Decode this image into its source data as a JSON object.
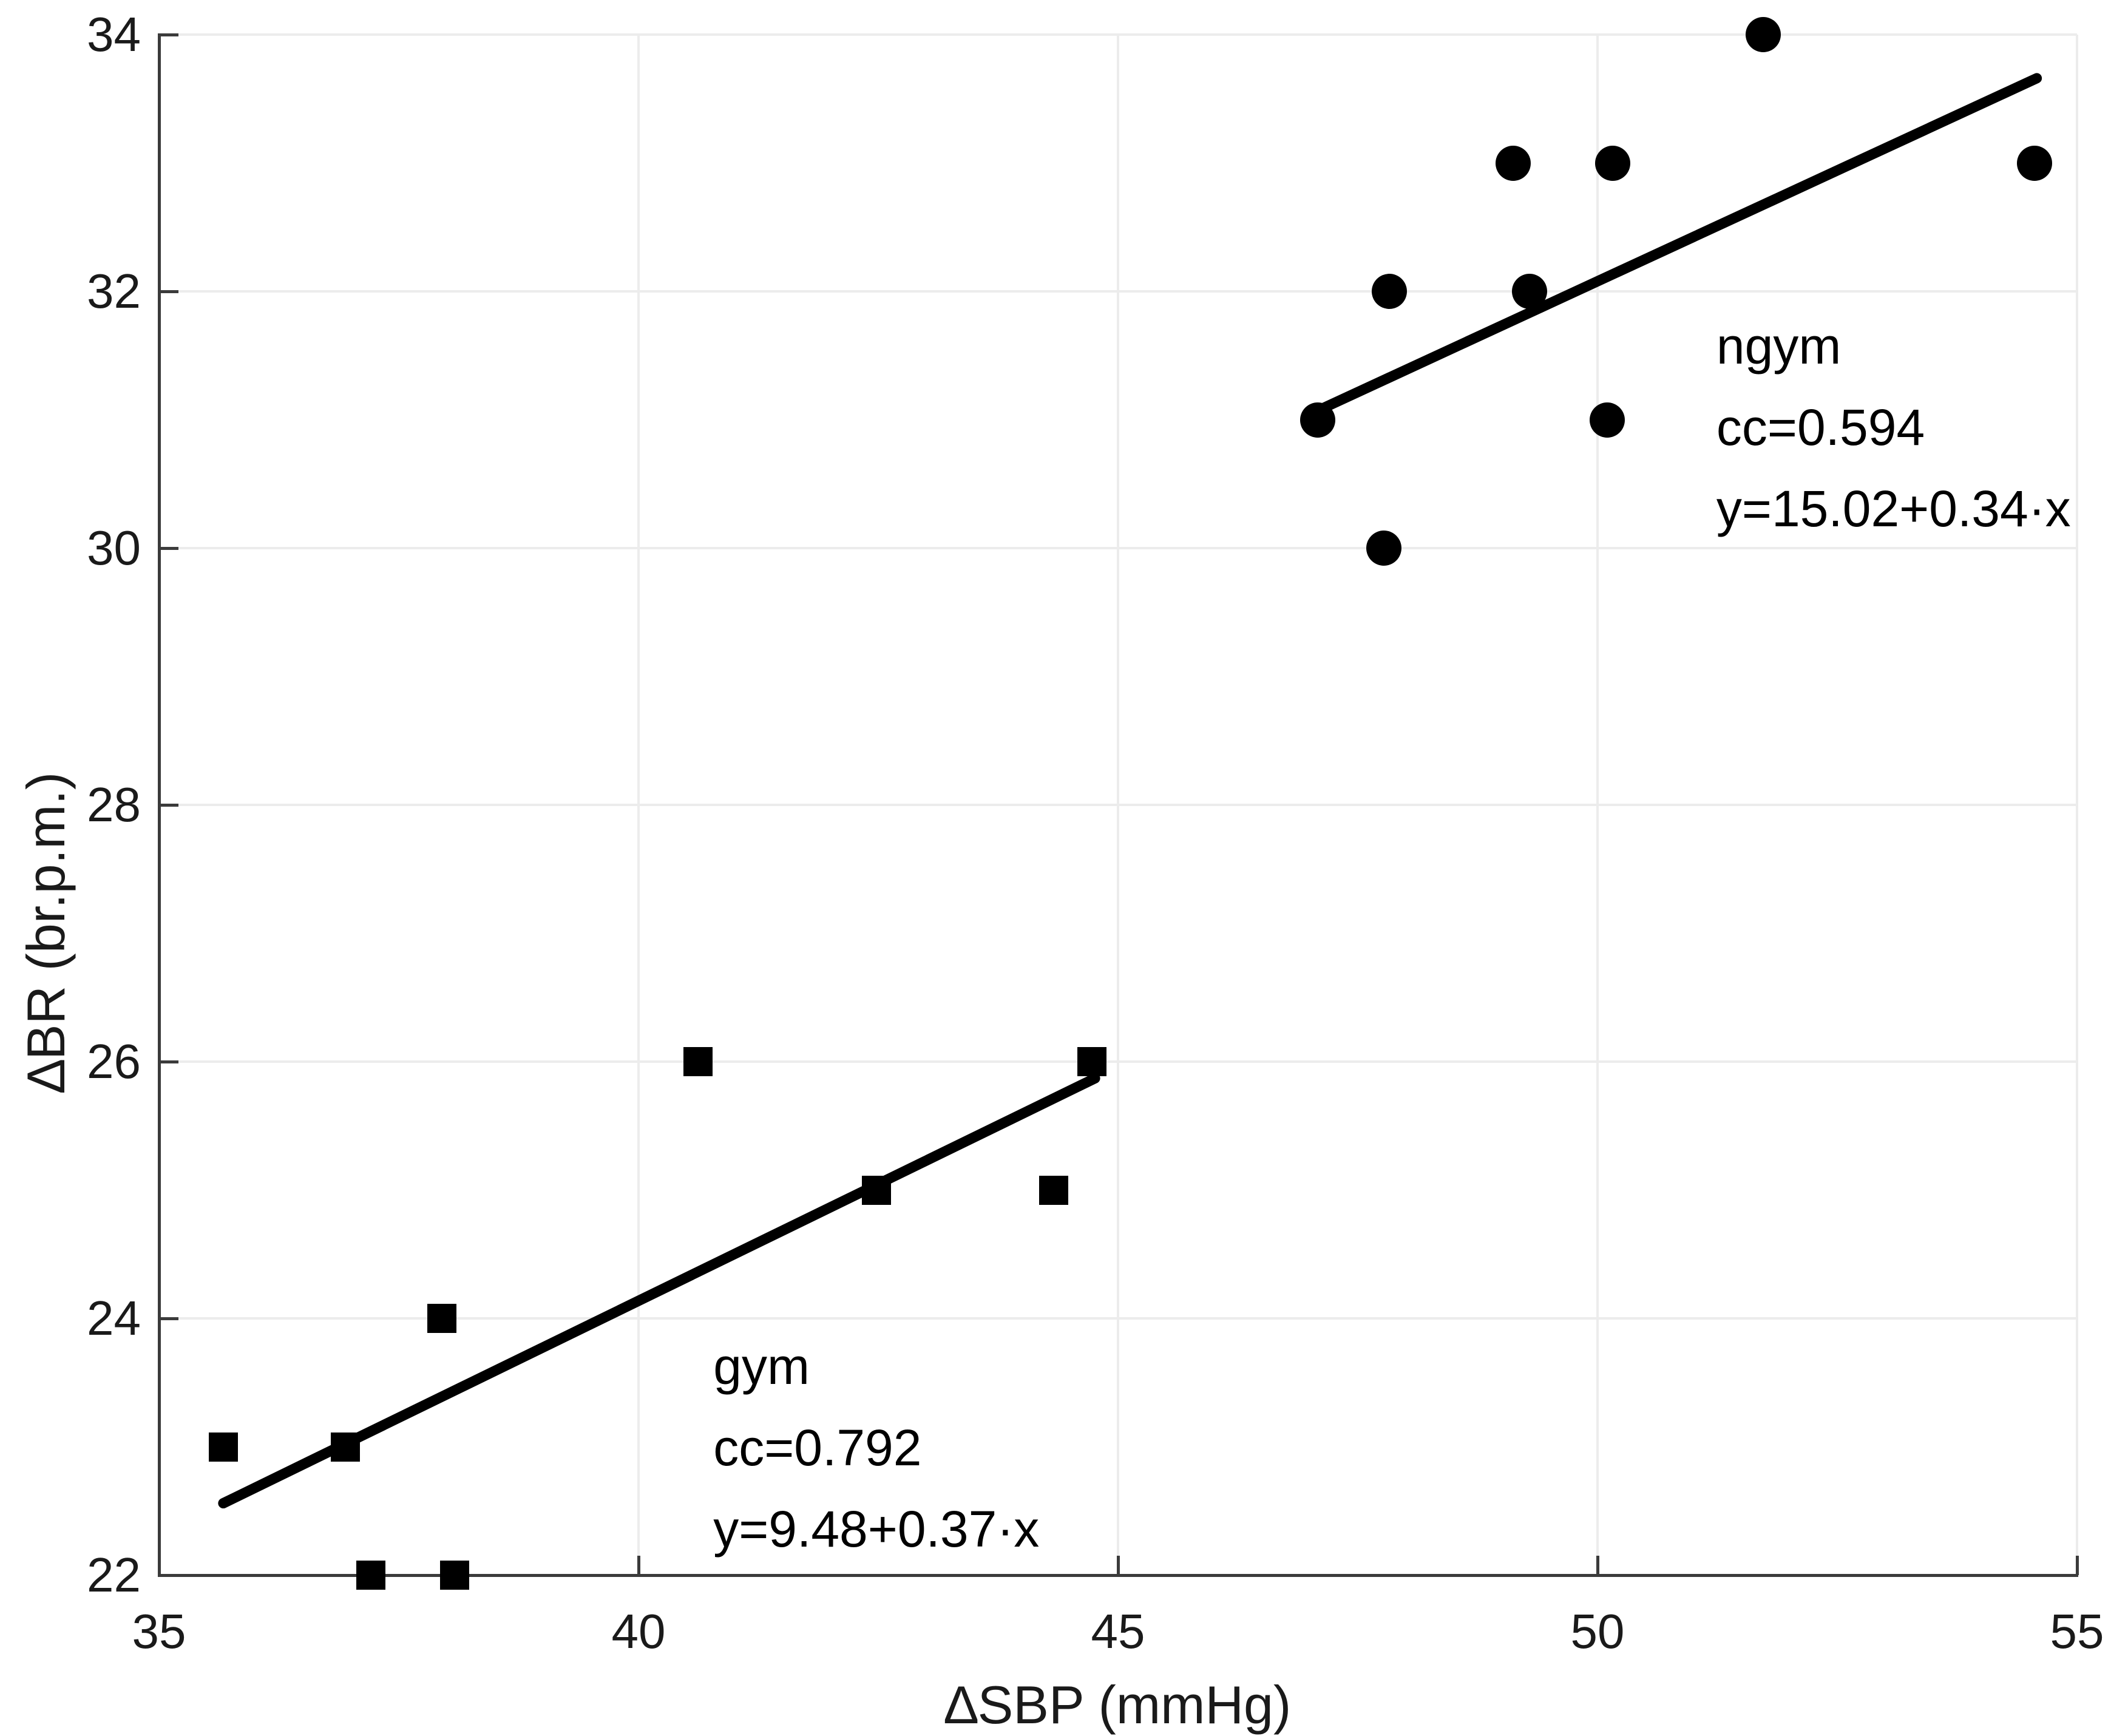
{
  "chart_data": {
    "type": "scatter",
    "title": "",
    "xlabel": "∆SBP (mmHg)",
    "ylabel": "∆BR (br.p.m.)",
    "xlim": [
      35,
      55
    ],
    "ylim": [
      22,
      34
    ],
    "xticks": [
      35,
      40,
      45,
      50,
      55
    ],
    "yticks": [
      22,
      24,
      26,
      28,
      30,
      32,
      34
    ],
    "grid": true,
    "colors": {
      "marker": "#000000",
      "fit_line": "#000000",
      "axis": "#3b3b3b",
      "grid": "#ececec",
      "text": "#1a1a1a"
    },
    "series": [
      {
        "name": "gym",
        "marker": "square",
        "points": [
          [
            35.67,
            23
          ],
          [
            36.94,
            23
          ],
          [
            37.21,
            22
          ],
          [
            37.95,
            24
          ],
          [
            38.08,
            22
          ],
          [
            40.62,
            26
          ],
          [
            42.48,
            25
          ],
          [
            44.33,
            25
          ],
          [
            44.73,
            26
          ]
        ],
        "fit_line": {
          "x1": 35.67,
          "y1": 22.56,
          "x2": 44.76,
          "y2": 25.87
        },
        "cc": 0.792,
        "equation": "y=9.48+0.37·x",
        "annotation": {
          "lines": [
            "gym",
            "cc=0.792",
            "y=9.48+0.37·x"
          ],
          "anchor_x": 40.78,
          "anchor_y_top": 23.944
        }
      },
      {
        "name": "ngym",
        "marker": "circle",
        "points": [
          [
            47.08,
            31
          ],
          [
            47.77,
            30
          ],
          [
            47.83,
            32
          ],
          [
            49.12,
            33
          ],
          [
            49.29,
            32
          ],
          [
            50.1,
            31
          ],
          [
            50.16,
            33
          ],
          [
            51.73,
            34
          ],
          [
            54.56,
            33
          ]
        ],
        "fit_line": {
          "x1": 47.08,
          "y1": 31.07,
          "x2": 54.58,
          "y2": 33.66
        },
        "cc": 0.594,
        "equation": "y=15.02+0.34·x",
        "annotation": {
          "lines": [
            "ngym",
            "cc=0.594",
            "y=15.02+0.34·x"
          ],
          "anchor_x": 51.24,
          "anchor_y_top": 31.89
        }
      }
    ]
  }
}
